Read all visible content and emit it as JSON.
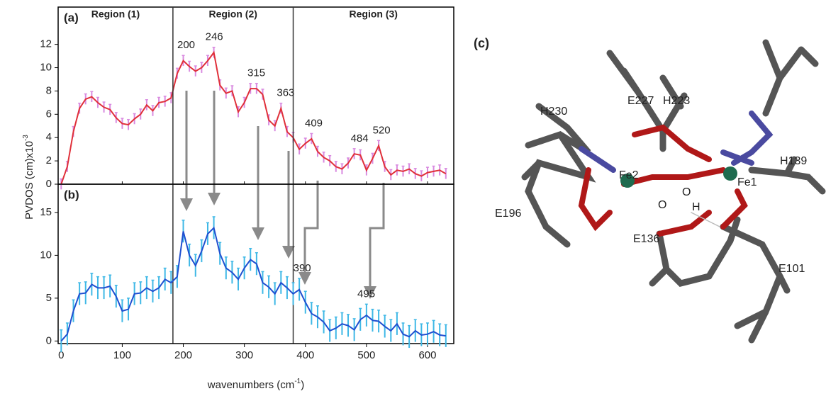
{
  "chart_data": [
    {
      "type": "line",
      "label": "(a)",
      "regions": [
        "Region (1)",
        "Region (2)",
        "Region (3)"
      ],
      "region_bounds": [
        183,
        380
      ],
      "x": [
        0,
        10,
        20,
        30,
        40,
        50,
        60,
        70,
        80,
        90,
        100,
        110,
        120,
        130,
        140,
        150,
        160,
        170,
        180,
        190,
        200,
        210,
        220,
        230,
        240,
        250,
        260,
        270,
        280,
        290,
        300,
        310,
        320,
        330,
        340,
        350,
        360,
        370,
        380,
        390,
        400,
        410,
        420,
        430,
        440,
        450,
        460,
        470,
        480,
        490,
        500,
        510,
        520,
        530,
        540,
        550,
        560,
        570,
        580,
        590,
        600,
        610,
        620,
        630
      ],
      "series": [
        {
          "color": "#e0303a",
          "error_color": "#d98be0",
          "error": 0.45,
          "values": [
            0,
            1.5,
            4.5,
            6.5,
            7.3,
            7.5,
            7.0,
            6.6,
            6.4,
            5.7,
            5.2,
            5.1,
            5.6,
            6.0,
            6.8,
            6.3,
            7.0,
            7.1,
            7.4,
            9.5,
            10.6,
            10.1,
            9.7,
            10.0,
            10.6,
            11.3,
            8.5,
            7.8,
            8.0,
            6.2,
            7.0,
            8.2,
            8.2,
            7.7,
            5.5,
            5.0,
            6.5,
            4.5,
            4.0,
            3.0,
            3.5,
            3.9,
            2.8,
            2.3,
            2.0,
            1.5,
            1.3,
            1.8,
            2.6,
            2.5,
            1.2,
            2.2,
            3.3,
            1.5,
            0.8,
            1.2,
            1.1,
            1.3,
            0.9,
            0.7,
            1.0,
            1.1,
            1.2,
            0.9
          ]
        }
      ],
      "peaks": [
        200,
        246,
        315,
        363,
        409,
        484,
        520
      ],
      "xlim": [
        -5,
        643
      ],
      "xticks": [
        0,
        100,
        200,
        300,
        400,
        500,
        600
      ],
      "ylim": [
        0,
        15.2
      ],
      "yticks": [
        0,
        2,
        4,
        6,
        8,
        10,
        12
      ]
    },
    {
      "type": "line",
      "label": "(b)",
      "x": [
        0,
        10,
        20,
        30,
        40,
        50,
        60,
        70,
        80,
        90,
        100,
        110,
        120,
        130,
        140,
        150,
        160,
        170,
        180,
        190,
        200,
        210,
        220,
        230,
        240,
        250,
        260,
        270,
        280,
        290,
        300,
        310,
        320,
        330,
        340,
        350,
        360,
        370,
        380,
        390,
        400,
        410,
        420,
        430,
        440,
        450,
        460,
        470,
        480,
        490,
        500,
        510,
        520,
        530,
        540,
        550,
        560,
        570,
        580,
        590,
        600,
        610,
        620,
        630
      ],
      "series": [
        {
          "color": "#1f4fd0",
          "error_color": "#3fb8e6",
          "error": 1.3,
          "values": [
            0,
            0.8,
            3.5,
            5.5,
            5.6,
            6.6,
            6.2,
            6.2,
            6.4,
            5.2,
            3.5,
            3.7,
            5.5,
            5.6,
            6.2,
            5.8,
            6.2,
            7.2,
            6.8,
            7.5,
            12.8,
            10.0,
            8.8,
            10.5,
            12.5,
            13.2,
            10.2,
            8.5,
            8.0,
            7.2,
            8.5,
            9.5,
            9.0,
            6.8,
            6.3,
            5.5,
            6.8,
            6.2,
            5.5,
            6.0,
            4.5,
            3.2,
            2.8,
            2.2,
            1.2,
            1.5,
            2.0,
            1.8,
            1.3,
            2.5,
            3.0,
            2.4,
            2.3,
            1.7,
            1.2,
            2.0,
            0.8,
            0.5,
            1.2,
            0.7,
            0.8,
            1.1,
            0.7,
            0.6
          ]
        }
      ],
      "peaks": [
        390,
        495
      ],
      "xlim": [
        -5,
        643
      ],
      "xticks": [
        0,
        100,
        200,
        300,
        400,
        500,
        600
      ],
      "ylim": [
        -0.3,
        18.3
      ],
      "yticks": [
        0,
        5,
        10,
        15
      ],
      "xlabel": [
        "wavenumbers (cm",
        "-1",
        ")"
      ],
      "ylabel": [
        "PVDOS (cm)x10",
        "-3"
      ]
    }
  ],
  "structure": {
    "label": "(c)",
    "atoms": [
      "H223",
      "E227",
      "H230",
      "H139",
      "Fe1",
      "Fe2",
      "O",
      "O",
      "H",
      "E196",
      "E136",
      "E101"
    ]
  }
}
